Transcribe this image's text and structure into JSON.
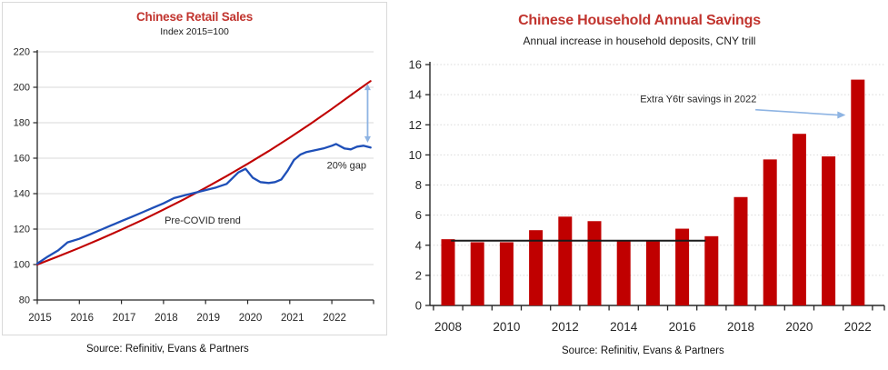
{
  "chart_data": [
    {
      "type": "line",
      "title": "Chinese Retail Sales",
      "subtitle": "Index 2015=100",
      "source": "Source: Refinitiv, Evans & Partners",
      "title_color": "#c1342e",
      "xlim": [
        2015,
        2023.05
      ],
      "ylim": [
        80,
        220
      ],
      "y_ticks": [
        80,
        100,
        120,
        140,
        160,
        180,
        200,
        220
      ],
      "x_ticks": [
        2015,
        2016,
        2017,
        2018,
        2019,
        2020,
        2021,
        2022
      ],
      "grid": "horizontal-solid-light",
      "legend": "none",
      "series": [
        {
          "name": "Pre-COVID trend",
          "color": "#c00000",
          "x": [
            2015,
            2015.5,
            2016,
            2016.5,
            2017,
            2017.5,
            2018,
            2018.5,
            2019,
            2019.5,
            2020,
            2020.5,
            2021,
            2021.5,
            2022,
            2022.5,
            2022.92
          ],
          "y": [
            100,
            104.6,
            109.4,
            114.4,
            119.7,
            125.2,
            131.0,
            137.0,
            143.3,
            149.9,
            156.8,
            164.0,
            171.6,
            179.5,
            187.8,
            196.4,
            203.5
          ]
        },
        {
          "name": "Retail sales index (actual)",
          "color": "#1e4fb8",
          "x": [
            2015,
            2015.25,
            2015.5,
            2015.72,
            2016,
            2016.25,
            2016.5,
            2016.75,
            2017,
            2017.25,
            2017.5,
            2017.75,
            2018,
            2018.25,
            2018.5,
            2018.75,
            2019,
            2019.25,
            2019.5,
            2019.78,
            2019.95,
            2020.12,
            2020.3,
            2020.5,
            2020.65,
            2020.8,
            2020.95,
            2021.1,
            2021.25,
            2021.4,
            2021.6,
            2021.8,
            2022.0,
            2022.1,
            2022.3,
            2022.45,
            2022.6,
            2022.75,
            2022.92
          ],
          "y": [
            100.5,
            104.5,
            108,
            112.5,
            114.5,
            117,
            119.5,
            122,
            124.5,
            127,
            129.5,
            132,
            134.5,
            137.5,
            139,
            140.5,
            142,
            143.5,
            145.5,
            152,
            154,
            149,
            146.5,
            146,
            146.5,
            148,
            153,
            159,
            162,
            163.5,
            164.5,
            165.5,
            167,
            168,
            165.5,
            165,
            166.5,
            167,
            166
          ]
        }
      ],
      "annotations": [
        {
          "id": "trend-label",
          "text": "Pre-COVID trend",
          "x": 2018.93,
          "y": 123
        },
        {
          "id": "gap-label",
          "text": "20% gap",
          "x": 2022.35,
          "y": 154
        }
      ],
      "gap_arrow": {
        "x": 2022.85,
        "y_from": 202,
        "y_to": 168.8,
        "color": "#8eb4e3"
      }
    },
    {
      "type": "bar",
      "title": "Chinese Household Annual Savings",
      "subtitle": "Annual increase in household deposits, CNY trill",
      "source": "Source: Refinitiv, Evans & Partners",
      "title_color": "#c1342e",
      "bar_color": "#c00000",
      "categories": [
        2008,
        2009,
        2010,
        2011,
        2012,
        2013,
        2014,
        2015,
        2016,
        2017,
        2018,
        2019,
        2020,
        2021,
        2022
      ],
      "values": [
        4.4,
        4.2,
        4.2,
        5.0,
        5.9,
        5.6,
        4.3,
        4.3,
        5.1,
        4.6,
        7.2,
        9.7,
        11.4,
        9.9,
        15.0
      ],
      "ylim": [
        0,
        16
      ],
      "y_ticks": [
        0,
        2,
        4,
        6,
        8,
        10,
        12,
        14,
        16
      ],
      "x_tick_labels": [
        2008,
        2010,
        2012,
        2014,
        2016,
        2018,
        2020,
        2022
      ],
      "grid": "horizontal-dotted-light",
      "legend": "none",
      "reference_line": {
        "value": 4.3,
        "x_from": 2008.1,
        "x_to": 2016.8,
        "color": "#1a1a1a"
      },
      "annotation": {
        "text": "Extra Y6tr savings in 2022",
        "x": 2016.55,
        "y": 13.75,
        "arrow": {
          "x_from": 2018.5,
          "y_from": 13.0,
          "x_to": 2021.52,
          "y_to": 12.65,
          "color": "#8eb4e3"
        }
      }
    }
  ]
}
